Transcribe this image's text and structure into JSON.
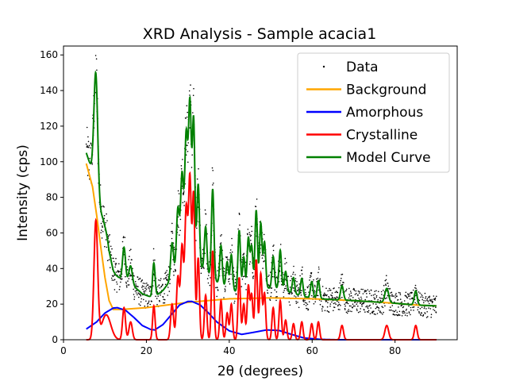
{
  "chart_data": {
    "type": "scatter",
    "title": "XRD Analysis - Sample acacia1",
    "xlabel": "2θ (degrees)",
    "ylabel": "Intensity (cps)",
    "xlim": [
      0,
      95
    ],
    "ylim": [
      0,
      165
    ],
    "xticks": [
      0,
      20,
      40,
      60,
      80
    ],
    "yticks": [
      0,
      20,
      40,
      60,
      80,
      100,
      120,
      140,
      160
    ],
    "legend_position": "top-right",
    "series": [
      {
        "name": "Data",
        "kind": "points",
        "color": "#000000",
        "x_range": [
          5.5,
          90
        ],
        "note_values": "dense raw diffraction points following the model curve with noise"
      },
      {
        "name": "Background",
        "kind": "line",
        "color": "#ffa500",
        "x": [
          5.5,
          7,
          8,
          9,
          10,
          11,
          12,
          14,
          17,
          20,
          25,
          30,
          40,
          50,
          60,
          70,
          80,
          85,
          90
        ],
        "y": [
          99,
          86,
          70,
          52,
          35,
          22,
          17,
          17,
          17.5,
          18,
          19.5,
          21,
          23,
          23.5,
          23,
          22,
          20.5,
          19.5,
          19
        ]
      },
      {
        "name": "Amorphous",
        "kind": "line",
        "color": "#0000ff",
        "x": [
          5.5,
          8,
          10,
          12,
          13,
          15,
          17,
          19,
          21,
          22,
          24,
          26,
          28,
          30,
          31,
          33,
          35,
          37,
          40,
          43,
          46,
          49,
          52,
          55,
          58,
          62,
          66,
          70,
          75,
          80,
          85,
          90
        ],
        "y": [
          6,
          10,
          15,
          17.8,
          18,
          16.5,
          12.5,
          8,
          5.8,
          5.5,
          8.5,
          14,
          19.5,
          21.5,
          21.5,
          19.5,
          15,
          10,
          5,
          3,
          4.2,
          5.5,
          5.2,
          3,
          1,
          0.2,
          0,
          0,
          0,
          0,
          0,
          0
        ]
      },
      {
        "name": "Crystalline",
        "kind": "line",
        "color": "#ff0000",
        "peaks": [
          {
            "x": 7.8,
            "y": 66,
            "w": 0.45
          },
          {
            "x": 10.3,
            "y": 14,
            "w": 1.1
          },
          {
            "x": 14.6,
            "y": 18,
            "w": 0.35
          },
          {
            "x": 16.2,
            "y": 10,
            "w": 0.4
          },
          {
            "x": 21.8,
            "y": 19,
            "w": 0.3
          },
          {
            "x": 26.2,
            "y": 20,
            "w": 0.35
          },
          {
            "x": 27.6,
            "y": 35,
            "w": 0.35
          },
          {
            "x": 28.6,
            "y": 52,
            "w": 0.35
          },
          {
            "x": 29.6,
            "y": 72,
            "w": 0.35
          },
          {
            "x": 30.5,
            "y": 90,
            "w": 0.35
          },
          {
            "x": 31.4,
            "y": 80,
            "w": 0.3
          },
          {
            "x": 32.5,
            "y": 46,
            "w": 0.3
          },
          {
            "x": 34.3,
            "y": 25,
            "w": 0.3
          },
          {
            "x": 36.0,
            "y": 50,
            "w": 0.3
          },
          {
            "x": 38.0,
            "y": 22,
            "w": 0.3
          },
          {
            "x": 39.5,
            "y": 15,
            "w": 0.3
          },
          {
            "x": 40.5,
            "y": 20,
            "w": 0.3
          },
          {
            "x": 42.4,
            "y": 35,
            "w": 0.3
          },
          {
            "x": 43.5,
            "y": 20,
            "w": 0.3
          },
          {
            "x": 44.6,
            "y": 30,
            "w": 0.3
          },
          {
            "x": 45.4,
            "y": 25,
            "w": 0.3
          },
          {
            "x": 46.5,
            "y": 45,
            "w": 0.3
          },
          {
            "x": 47.6,
            "y": 37,
            "w": 0.3
          },
          {
            "x": 48.5,
            "y": 26,
            "w": 0.3
          },
          {
            "x": 50.6,
            "y": 18,
            "w": 0.3
          },
          {
            "x": 52.3,
            "y": 22,
            "w": 0.3
          },
          {
            "x": 53.6,
            "y": 11,
            "w": 0.3
          },
          {
            "x": 55.5,
            "y": 9,
            "w": 0.3
          },
          {
            "x": 57.5,
            "y": 10,
            "w": 0.3
          },
          {
            "x": 59.9,
            "y": 9,
            "w": 0.3
          },
          {
            "x": 61.5,
            "y": 10,
            "w": 0.3
          },
          {
            "x": 67.2,
            "y": 8,
            "w": 0.35
          },
          {
            "x": 78.0,
            "y": 8,
            "w": 0.45
          },
          {
            "x": 85.0,
            "y": 8,
            "w": 0.35
          }
        ]
      },
      {
        "name": "Model Curve",
        "kind": "line",
        "color": "#008000",
        "description": "Background + Amorphous + Crystalline"
      }
    ]
  }
}
